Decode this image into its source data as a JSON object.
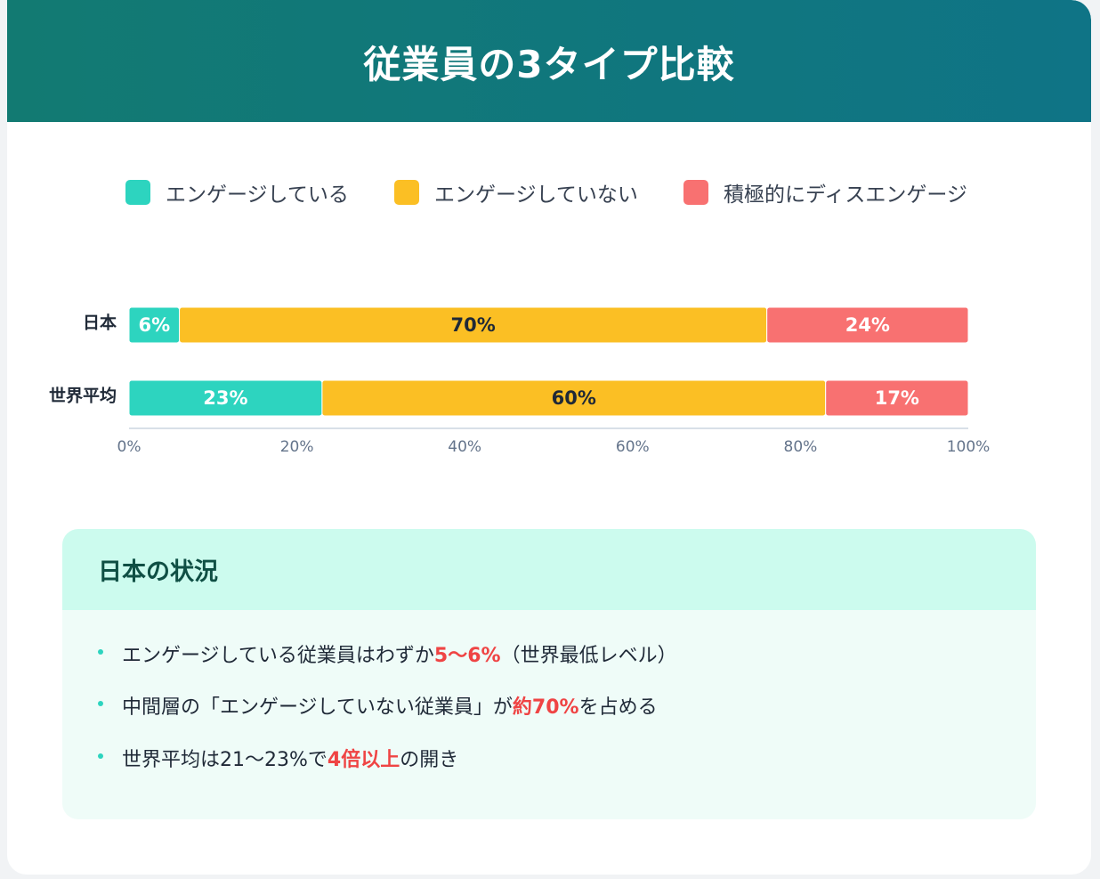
{
  "title": "従業員の3タイプ比較",
  "chart_data": {
    "type": "bar",
    "orientation": "horizontal",
    "stacked": true,
    "categories": [
      "日本",
      "世界平均"
    ],
    "series": [
      {
        "name": "エンゲージしている",
        "color": "#2dd4bf",
        "label_color": "#ffffff",
        "values": [
          6,
          23
        ]
      },
      {
        "name": "エンゲージしていない",
        "color": "#fbbf24",
        "label_color": "#1f2937",
        "values": [
          70,
          60
        ]
      },
      {
        "name": "積極的にディスエンゲージ",
        "color": "#f87171",
        "label_color": "#ffffff",
        "values": [
          24,
          17
        ]
      }
    ],
    "xlim": [
      0,
      100
    ],
    "xticks": [
      0,
      20,
      40,
      60,
      80,
      100
    ],
    "tick_suffix": "%",
    "legend_position": "top",
    "grid": false
  },
  "panel": {
    "title": "日本の状況",
    "items": [
      {
        "before": "エンゲージしている従業員はわずか",
        "highlight": "5〜6%",
        "after": "（世界最低レベル）"
      },
      {
        "before": "中間層の「エンゲージしていない従業員」が",
        "highlight": "約70%",
        "after": "を占める"
      },
      {
        "before": "世界平均は21〜23%で",
        "highlight": "4倍以上",
        "after": "の開き"
      }
    ]
  }
}
